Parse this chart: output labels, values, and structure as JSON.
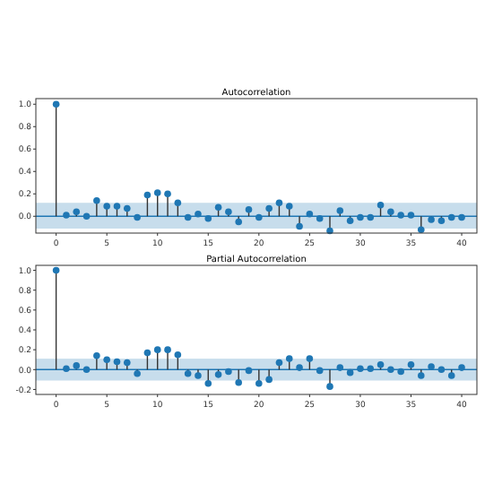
{
  "chart_data": [
    {
      "type": "lollipop",
      "title": "Autocorrelation",
      "x": [
        0,
        1,
        2,
        3,
        4,
        5,
        6,
        7,
        8,
        9,
        10,
        11,
        12,
        13,
        14,
        15,
        16,
        17,
        18,
        19,
        20,
        21,
        22,
        23,
        24,
        25,
        26,
        27,
        28,
        29,
        30,
        31,
        32,
        33,
        34,
        35,
        36,
        37,
        38,
        39,
        40
      ],
      "series": [
        {
          "color": "#1f77b4",
          "values": [
            1.0,
            0.01,
            0.04,
            0.0,
            0.14,
            0.09,
            0.09,
            0.07,
            -0.01,
            0.19,
            0.21,
            0.2,
            0.12,
            -0.01,
            0.02,
            -0.02,
            0.08,
            0.04,
            -0.05,
            0.06,
            -0.01,
            0.07,
            0.12,
            0.09,
            -0.09,
            0.02,
            -0.02,
            -0.13,
            0.05,
            -0.04,
            -0.01,
            -0.01,
            0.1,
            0.04,
            0.01,
            0.01,
            -0.12,
            -0.03,
            -0.04,
            -0.01,
            -0.01
          ]
        }
      ],
      "xlim": [
        -2,
        41.5
      ],
      "xticks": [
        0,
        5,
        10,
        15,
        20,
        25,
        30,
        35,
        40
      ],
      "ylim": [
        -0.15,
        1.05
      ],
      "yticks": [
        {
          "value": 0,
          "label": "0.0"
        },
        0.2,
        0.4,
        0.6,
        0.8,
        {
          "value": 1,
          "label": "1.0"
        }
      ],
      "marker": "circle",
      "ref_lines": [
        {
          "axis": "y",
          "value": 0,
          "color": "#1f77b4"
        }
      ],
      "bands": [
        {
          "axis": "y",
          "from": -0.11,
          "to": 0.12,
          "color": "#1f77b4"
        }
      ]
    },
    {
      "type": "lollipop",
      "title": "Partial Autocorrelation",
      "x": [
        0,
        1,
        2,
        3,
        4,
        5,
        6,
        7,
        8,
        9,
        10,
        11,
        12,
        13,
        14,
        15,
        16,
        17,
        18,
        19,
        20,
        21,
        22,
        23,
        24,
        25,
        26,
        27,
        28,
        29,
        30,
        31,
        32,
        33,
        34,
        35,
        36,
        37,
        38,
        39,
        40
      ],
      "series": [
        {
          "color": "#1f77b4",
          "values": [
            1.0,
            0.01,
            0.04,
            0.0,
            0.14,
            0.1,
            0.08,
            0.07,
            -0.04,
            0.17,
            0.2,
            0.2,
            0.15,
            -0.04,
            -0.06,
            -0.14,
            -0.05,
            -0.02,
            -0.13,
            -0.01,
            -0.14,
            -0.1,
            0.07,
            0.11,
            0.02,
            0.11,
            -0.01,
            -0.17,
            0.02,
            -0.03,
            0.01,
            0.01,
            0.05,
            0.0,
            -0.02,
            0.05,
            -0.06,
            0.03,
            0.0,
            -0.06,
            0.02
          ]
        }
      ],
      "xlim": [
        -2,
        41.5
      ],
      "xticks": [
        0,
        5,
        10,
        15,
        20,
        25,
        30,
        35,
        40
      ],
      "ylim": [
        -0.25,
        1.05
      ],
      "yticks": [
        {
          "value": -0.2,
          "label": "-0.2"
        },
        {
          "value": 0,
          "label": "0.0"
        },
        0.2,
        0.4,
        0.6,
        0.8,
        {
          "value": 1,
          "label": "1.0"
        }
      ],
      "marker": "circle",
      "ref_lines": [
        {
          "axis": "y",
          "value": 0,
          "color": "#1f77b4"
        }
      ],
      "bands": [
        {
          "axis": "y",
          "from": -0.11,
          "to": 0.11,
          "color": "#1f77b4"
        }
      ]
    }
  ]
}
